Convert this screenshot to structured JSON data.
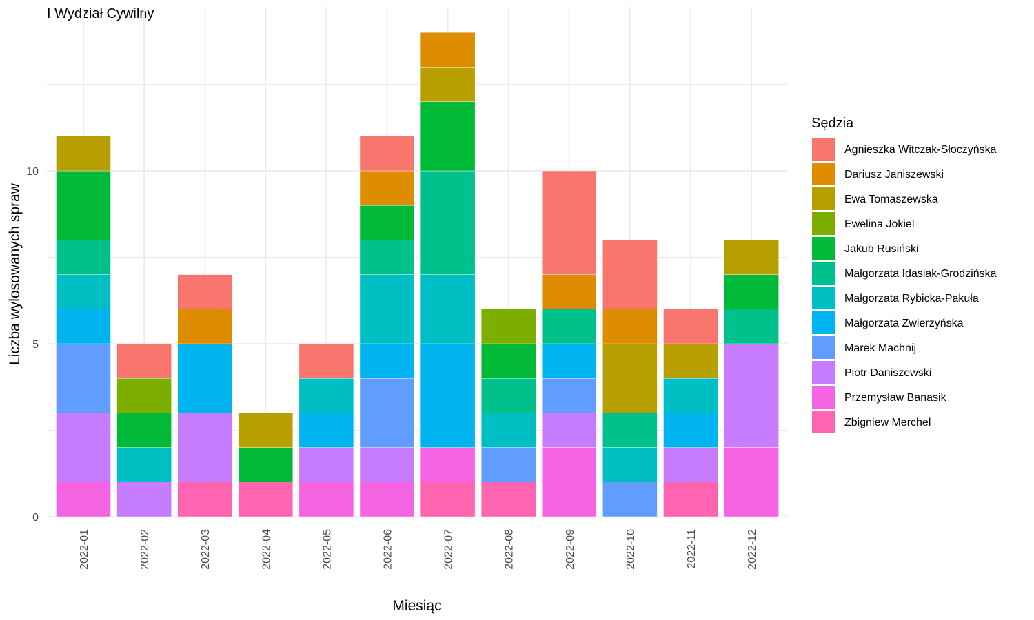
{
  "chart_data": {
    "type": "bar",
    "stacked": true,
    "title": "I Wydział Cywilny",
    "xlabel": "Miesiąc",
    "ylabel": "Liczba wylosowanych spraw",
    "ylim": [
      0,
      14
    ],
    "yticks": [
      0,
      5,
      10
    ],
    "grid": true,
    "legend": {
      "title": "Sędzia",
      "position": "right"
    },
    "categories": [
      "2022-01",
      "2022-02",
      "2022-03",
      "2022-04",
      "2022-05",
      "2022-06",
      "2022-07",
      "2022-08",
      "2022-09",
      "2022-10",
      "2022-11",
      "2022-12"
    ],
    "series": [
      {
        "name": "Agnieszka Witczak-Słoczyńska",
        "color": "#F8766D",
        "values": [
          0,
          1,
          1,
          0,
          1,
          1,
          0,
          0,
          3,
          2,
          1,
          0
        ]
      },
      {
        "name": "Dariusz Janiszewski",
        "color": "#DE8C00",
        "values": [
          0,
          0,
          1,
          0,
          0,
          1,
          1,
          0,
          1,
          1,
          0,
          0
        ]
      },
      {
        "name": "Ewa Tomaszewska",
        "color": "#B79F00",
        "values": [
          1,
          0,
          0,
          1,
          0,
          0,
          1,
          0,
          0,
          2,
          1,
          1
        ]
      },
      {
        "name": "Ewelina Jokiel",
        "color": "#7CAE00",
        "values": [
          0,
          1,
          0,
          0,
          0,
          0,
          0,
          1,
          0,
          0,
          0,
          0
        ]
      },
      {
        "name": "Jakub Rusiński",
        "color": "#00BA38",
        "values": [
          2,
          1,
          0,
          1,
          0,
          1,
          2,
          1,
          0,
          0,
          0,
          1
        ]
      },
      {
        "name": "Małgorzata Idasiak-Grodzińska",
        "color": "#00C08B",
        "values": [
          1,
          0,
          0,
          0,
          0,
          1,
          3,
          1,
          1,
          1,
          0,
          1
        ]
      },
      {
        "name": "Małgorzata Rybicka-Pakuła",
        "color": "#00BFC4",
        "values": [
          1,
          1,
          0,
          0,
          1,
          2,
          2,
          1,
          0,
          1,
          1,
          0
        ]
      },
      {
        "name": "Małgorzata Zwierzyńska",
        "color": "#00B4F0",
        "values": [
          1,
          0,
          2,
          0,
          1,
          1,
          3,
          0,
          1,
          0,
          1,
          0
        ]
      },
      {
        "name": "Marek Machnij",
        "color": "#619CFF",
        "values": [
          2,
          0,
          0,
          0,
          0,
          2,
          0,
          1,
          1,
          1,
          0,
          0
        ]
      },
      {
        "name": "Piotr Daniszewski",
        "color": "#C77CFF",
        "values": [
          2,
          1,
          2,
          0,
          1,
          1,
          0,
          0,
          1,
          0,
          1,
          3
        ]
      },
      {
        "name": "Przemysław Banasik",
        "color": "#F564E3",
        "values": [
          1,
          0,
          0,
          0,
          1,
          1,
          1,
          0,
          2,
          0,
          0,
          2
        ]
      },
      {
        "name": "Zbigniew Merchel",
        "color": "#FF64B0",
        "values": [
          0,
          0,
          1,
          1,
          0,
          0,
          1,
          1,
          0,
          0,
          1,
          0
        ]
      }
    ]
  }
}
